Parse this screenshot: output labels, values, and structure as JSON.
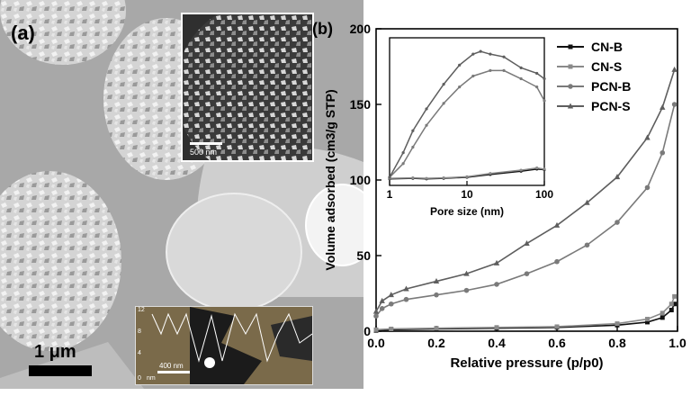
{
  "panel_a": {
    "label": "(a)",
    "scale_bar_main": "1 μm",
    "inset_sem_scale": "500 nm",
    "inset_afm_scale": "400 nm",
    "inset_afm_axis_ticks": [
      "12",
      "8",
      "4",
      "0"
    ],
    "inset_afm_unit": "nm"
  },
  "panel_b": {
    "label": "(b)"
  },
  "chart_data": [
    {
      "type": "line",
      "xlabel": "Relative pressure (p/p0)",
      "ylabel": "Volume adsorbed (cm3/g STP)",
      "xlim": [
        0,
        1.0
      ],
      "ylim": [
        0,
        200
      ],
      "xticks": [
        "0.0",
        "0.2",
        "0.4",
        "0.6",
        "0.8",
        "1.0"
      ],
      "yticks": [
        "0",
        "50",
        "100",
        "150",
        "200"
      ],
      "legend": "top-right",
      "series": [
        {
          "name": "CN-B",
          "marker": "square",
          "color": "#111111",
          "x": [
            0.0,
            0.05,
            0.2,
            0.4,
            0.6,
            0.8,
            0.9,
            0.95,
            0.98,
            0.99
          ],
          "y": [
            0.5,
            1,
            1.5,
            2,
            2.5,
            4,
            6,
            9,
            14,
            18
          ]
        },
        {
          "name": "CN-S",
          "marker": "square",
          "color": "#8a8a8a",
          "x": [
            0.0,
            0.05,
            0.2,
            0.4,
            0.6,
            0.8,
            0.9,
            0.95,
            0.98,
            0.99
          ],
          "y": [
            1,
            1.5,
            2,
            2.5,
            3,
            5,
            8,
            12,
            18,
            23
          ]
        },
        {
          "name": "PCN-B",
          "marker": "circle",
          "color": "#7a7a7a",
          "x": [
            0.0,
            0.02,
            0.05,
            0.1,
            0.2,
            0.3,
            0.4,
            0.5,
            0.6,
            0.7,
            0.8,
            0.9,
            0.95,
            0.99
          ],
          "y": [
            10,
            15,
            18,
            21,
            24,
            27,
            31,
            38,
            46,
            57,
            72,
            95,
            118,
            150
          ]
        },
        {
          "name": "PCN-S",
          "marker": "triangle",
          "color": "#5e5e5e",
          "x": [
            0.0,
            0.02,
            0.05,
            0.1,
            0.2,
            0.3,
            0.4,
            0.5,
            0.6,
            0.7,
            0.8,
            0.9,
            0.95,
            0.99
          ],
          "y": [
            13,
            20,
            24,
            28,
            33,
            38,
            45,
            58,
            70,
            85,
            102,
            128,
            148,
            173
          ]
        }
      ]
    },
    {
      "type": "line",
      "xlabel": "Pore size (nm)",
      "xscale": "log",
      "xlim": [
        1,
        100
      ],
      "xticks": [
        "1",
        "10",
        "100"
      ],
      "series": [
        {
          "name": "CN-B",
          "color": "#111111",
          "x": [
            1,
            2,
            3,
            5,
            10,
            20,
            50,
            80,
            100
          ],
          "y": [
            0.02,
            0.03,
            0.02,
            0.03,
            0.05,
            0.1,
            0.16,
            0.2,
            0.19
          ]
        },
        {
          "name": "CN-S",
          "color": "#8a8a8a",
          "x": [
            1,
            2,
            3,
            5,
            10,
            20,
            50,
            80,
            100
          ],
          "y": [
            0.03,
            0.04,
            0.03,
            0.04,
            0.06,
            0.12,
            0.18,
            0.22,
            0.2
          ]
        },
        {
          "name": "PCN-B",
          "color": "#7a7a7a",
          "x": [
            1,
            1.5,
            2,
            3,
            5,
            8,
            12,
            20,
            30,
            50,
            80,
            100
          ],
          "y": [
            0.05,
            0.3,
            0.6,
            1.0,
            1.4,
            1.7,
            1.9,
            2.0,
            2.0,
            1.85,
            1.7,
            1.45
          ]
        },
        {
          "name": "PCN-S",
          "color": "#5e5e5e",
          "x": [
            1,
            1.5,
            2,
            3,
            5,
            8,
            12,
            15,
            20,
            30,
            50,
            80,
            100
          ],
          "y": [
            0.05,
            0.5,
            0.9,
            1.3,
            1.75,
            2.1,
            2.3,
            2.35,
            2.3,
            2.25,
            2.05,
            1.95,
            1.85
          ]
        }
      ]
    }
  ]
}
